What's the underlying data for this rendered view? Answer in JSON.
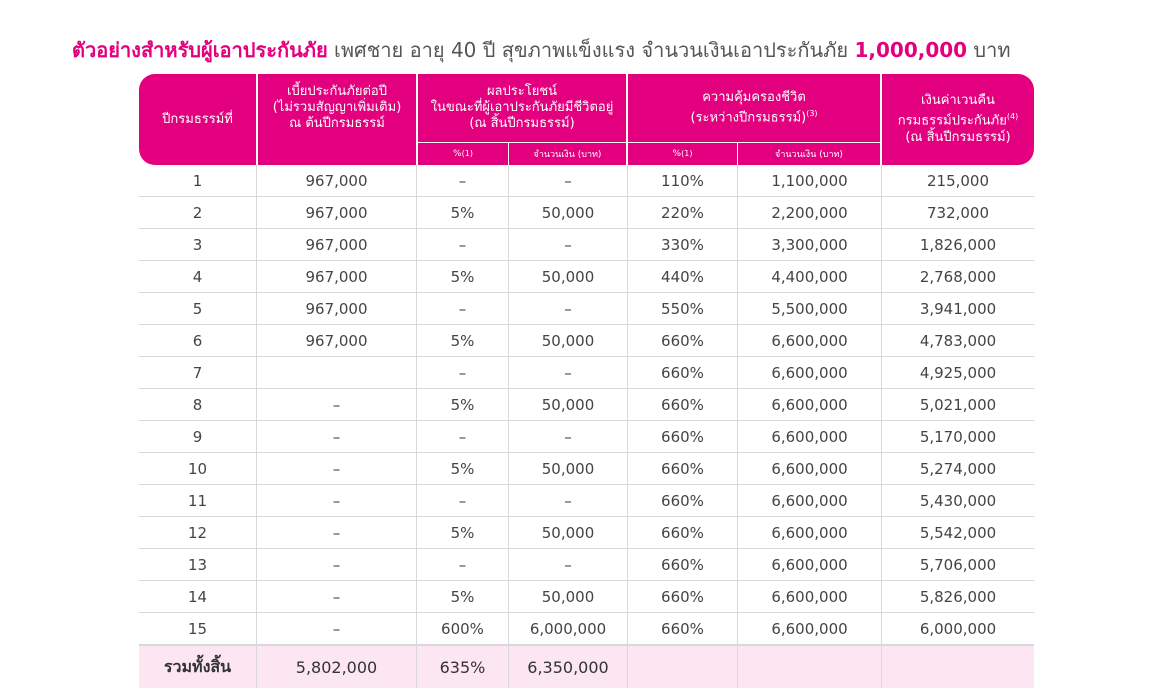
{
  "title": {
    "prefix": "ตัวอย่างสำหรับผู้เอาประกันภัย",
    "middle": " เพศชาย อายุ 40 ปี สุขภาพแข็งแรง จำนวนเงินเอาประกันภัย ",
    "amount": "1,000,000",
    "suffix": " บาท"
  },
  "header": {
    "col_year": "ปีกรมธรรม์ที่",
    "col_premium": [
      "เบี้ยประกันภัยต่อปี",
      "(ไม่รวมสัญญาเพิ่มเติม)",
      "ณ ต้นปีกรมธรรม์"
    ],
    "col_benefit": [
      "ผลประโยชน์",
      "ในขณะที่ผู้เอาประกันภัยมีชีวิตอยู่",
      "(ณ สิ้นปีกรมธรรม์)"
    ],
    "col_coverage": [
      "ความคุ้มครองชีวิต",
      "(ระหว่างปีกรมธรรม์)"
    ],
    "col_coverage_sup": "(3)",
    "col_cash": [
      "เงินค่าเวนคืน",
      "กรมธรรม์ประกันภัย",
      "(ณ สิ้นปีกรมธรรม์)"
    ],
    "col_cash_sup": "(4)",
    "sub_percent": "%",
    "sub_percent_sup": "(1)",
    "sub_amount": "จำนวนเงิน (บาท)",
    "sub_percent2": "%",
    "sub_percent2_sup": "(1)",
    "sub_amount2": "จำนวนเงิน (บาท)"
  },
  "rows": [
    {
      "year": "1",
      "premium": "967,000",
      "ben_pct": "–",
      "ben_amt": "–",
      "cov_pct": "110%",
      "cov_amt": "1,100,000",
      "cash": "215,000"
    },
    {
      "year": "2",
      "premium": "967,000",
      "ben_pct": "5%",
      "ben_amt": "50,000",
      "cov_pct": "220%",
      "cov_amt": "2,200,000",
      "cash": "732,000"
    },
    {
      "year": "3",
      "premium": "967,000",
      "ben_pct": "–",
      "ben_amt": "–",
      "cov_pct": "330%",
      "cov_amt": "3,300,000",
      "cash": "1,826,000"
    },
    {
      "year": "4",
      "premium": "967,000",
      "ben_pct": "5%",
      "ben_amt": "50,000",
      "cov_pct": "440%",
      "cov_amt": "4,400,000",
      "cash": "2,768,000"
    },
    {
      "year": "5",
      "premium": "967,000",
      "ben_pct": "–",
      "ben_amt": "–",
      "cov_pct": "550%",
      "cov_amt": "5,500,000",
      "cash": "3,941,000"
    },
    {
      "year": "6",
      "premium": "967,000",
      "ben_pct": "5%",
      "ben_amt": "50,000",
      "cov_pct": "660%",
      "cov_amt": "6,600,000",
      "cash": "4,783,000"
    },
    {
      "year": "7",
      "premium": "",
      "ben_pct": "–",
      "ben_amt": "–",
      "cov_pct": "660%",
      "cov_amt": "6,600,000",
      "cash": "4,925,000"
    },
    {
      "year": "8",
      "premium": "–",
      "ben_pct": "5%",
      "ben_amt": "50,000",
      "cov_pct": "660%",
      "cov_amt": "6,600,000",
      "cash": "5,021,000"
    },
    {
      "year": "9",
      "premium": "–",
      "ben_pct": "–",
      "ben_amt": "–",
      "cov_pct": "660%",
      "cov_amt": "6,600,000",
      "cash": "5,170,000"
    },
    {
      "year": "10",
      "premium": "–",
      "ben_pct": "5%",
      "ben_amt": "50,000",
      "cov_pct": "660%",
      "cov_amt": "6,600,000",
      "cash": "5,274,000"
    },
    {
      "year": "11",
      "premium": "–",
      "ben_pct": "–",
      "ben_amt": "–",
      "cov_pct": "660%",
      "cov_amt": "6,600,000",
      "cash": "5,430,000"
    },
    {
      "year": "12",
      "premium": "–",
      "ben_pct": "5%",
      "ben_amt": "50,000",
      "cov_pct": "660%",
      "cov_amt": "6,600,000",
      "cash": "5,542,000"
    },
    {
      "year": "13",
      "premium": "–",
      "ben_pct": "–",
      "ben_amt": "–",
      "cov_pct": "660%",
      "cov_amt": "6,600,000",
      "cash": "5,706,000"
    },
    {
      "year": "14",
      "premium": "–",
      "ben_pct": "5%",
      "ben_amt": "50,000",
      "cov_pct": "660%",
      "cov_amt": "6,600,000",
      "cash": "5,826,000"
    },
    {
      "year": "15",
      "premium": "–",
      "ben_pct": "600%",
      "ben_amt": "6,000,000",
      "cov_pct": "660%",
      "cov_amt": "6,600,000",
      "cash": "6,000,000"
    }
  ],
  "total": {
    "label": "รวมทั้งสิ้น",
    "premium": "5,802,000",
    "ben_pct": "635%",
    "ben_amt": "6,350,000"
  },
  "colors": {
    "accent": "#e3007f",
    "total_bg": "#fbe6f2"
  }
}
